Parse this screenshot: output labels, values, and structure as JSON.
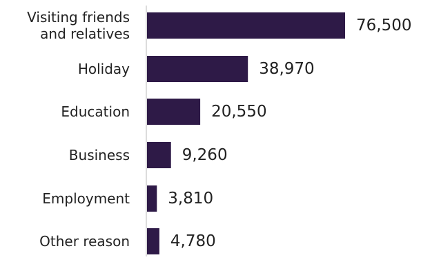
{
  "chart_data": {
    "type": "bar",
    "orientation": "horizontal",
    "categories": [
      [
        "Visiting friends",
        "and relatives"
      ],
      [
        "Holiday"
      ],
      [
        "Education"
      ],
      [
        "Business"
      ],
      [
        "Employment"
      ],
      [
        "Other reason"
      ]
    ],
    "values": [
      76500,
      38970,
      20550,
      9260,
      3810,
      4780
    ],
    "value_labels": [
      "76,500",
      "38,970",
      "20,550",
      "9,260",
      "3,810",
      "4,780"
    ],
    "title": "",
    "xlabel": "",
    "ylabel": "",
    "xlim": [
      0,
      76500
    ],
    "grid": false,
    "legend": "none",
    "bar_color": "#2e1a47",
    "axis_color": "#d0d0d0"
  }
}
